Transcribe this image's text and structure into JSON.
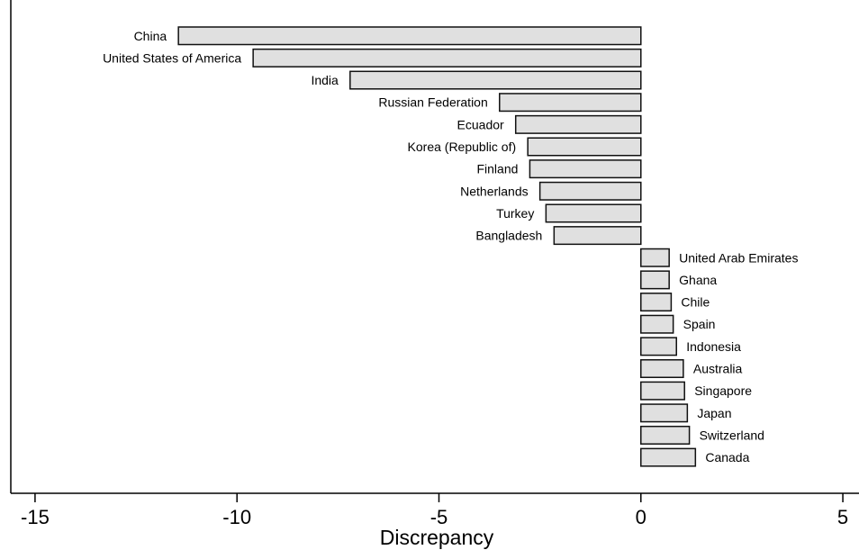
{
  "chart_data": {
    "type": "bar",
    "orientation": "horizontal",
    "xlabel": "Discrepancy",
    "ylabel": "",
    "xlim": [
      -15.6,
      5.4
    ],
    "xticks": [
      -15,
      -10,
      -5,
      0,
      5
    ],
    "xtick_labels": [
      "-15",
      "-10",
      "-5",
      "0",
      "5"
    ],
    "grid": false,
    "colors": {
      "bar_fill": "#e0e0e0",
      "bar_stroke": "#111111"
    },
    "categories": [
      "China",
      "United States of America",
      "India",
      "Russian Federation",
      "Ecuador",
      "Korea (Republic of)",
      "Finland",
      "Netherlands",
      "Turkey",
      "Bangladesh",
      "United Arab Emirates",
      "Ghana",
      "Chile",
      "Spain",
      "Indonesia",
      "Australia",
      "Singapore",
      "Japan",
      "Switzerland",
      "Canada"
    ],
    "values": [
      -11.45,
      -9.6,
      -7.2,
      -3.5,
      -3.1,
      -2.8,
      -2.75,
      -2.5,
      -2.35,
      -2.15,
      0.7,
      0.7,
      0.75,
      0.8,
      0.88,
      1.05,
      1.08,
      1.15,
      1.2,
      1.35
    ]
  }
}
